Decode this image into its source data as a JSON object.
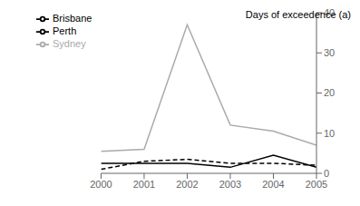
{
  "chart_data": {
    "type": "line",
    "ylabel": "Days of exceedence (a)",
    "x": [
      2000,
      2001,
      2002,
      2003,
      2004,
      2005
    ],
    "series": [
      {
        "name": "Brisbane",
        "color": "#000000",
        "line_style": "solid",
        "values": [
          2.5,
          2.5,
          2.5,
          1.5,
          4.5,
          1.5
        ]
      },
      {
        "name": "Sydney",
        "color": "#aaaaaa",
        "line_style": "solid",
        "values": [
          5.5,
          6.0,
          37.0,
          12.0,
          10.5,
          7.0
        ]
      },
      {
        "name": "Perth",
        "color": "#000000",
        "line_style": "dashed",
        "values": [
          1.0,
          3.0,
          3.5,
          2.5,
          2.5,
          2.0
        ]
      }
    ],
    "xlim": [
      2000,
      2005
    ],
    "xticks": [
      2000,
      2001,
      2002,
      2003,
      2004,
      2005
    ],
    "ylim": [
      0,
      40
    ],
    "yticks": [
      0,
      10,
      20,
      30,
      40
    ],
    "grid": false,
    "legend": "upper left"
  }
}
